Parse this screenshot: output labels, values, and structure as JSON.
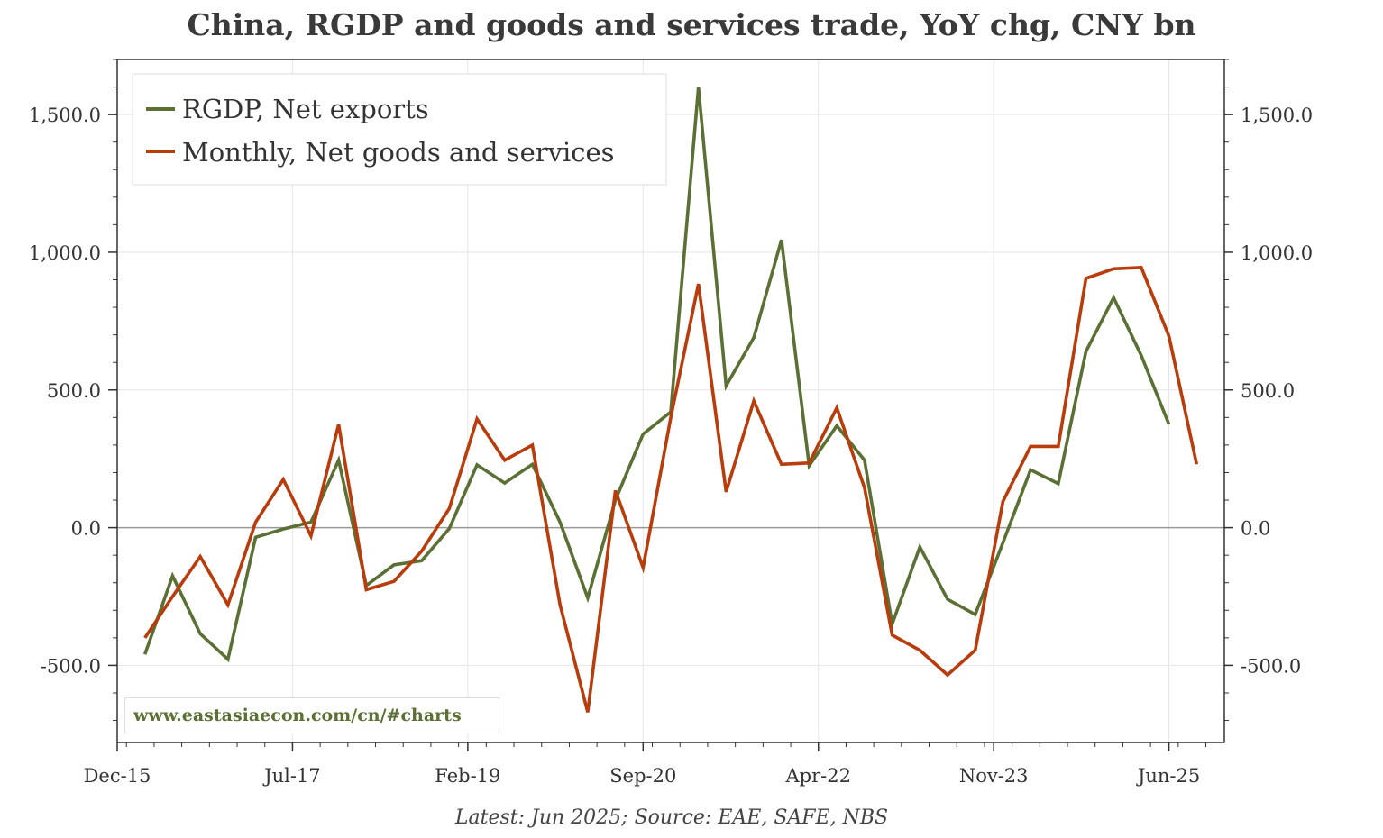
{
  "title": "China, RGDP and goods and services trade, YoY chg, CNY bn",
  "source_note": "Latest: Jun 2025; Source: EAE, SAFE, NBS",
  "watermark": "www.eastasiaecon.com/cn/#charts",
  "colors": {
    "rgdp": "#5b7035",
    "monthly": "#b83c0c",
    "grid": "#e6e6e6",
    "zero": "#999999",
    "axis": "#333333"
  },
  "chart_data": {
    "type": "line",
    "title": "China, RGDP and goods and services trade, YoY chg, CNY bn",
    "xlim": [
      "2015-12",
      "2025-12"
    ],
    "ylim": [
      -780,
      1700
    ],
    "x_ticks": [
      "Dec-15",
      "Jul-17",
      "Feb-19",
      "Sep-20",
      "Apr-22",
      "Nov-23",
      "Jun-25"
    ],
    "y_ticks": [
      "1,500.0",
      "1,000.0",
      "500.0",
      "0.0",
      "-500.0"
    ],
    "y_tick_values": [
      1500,
      1000,
      500,
      0,
      -500
    ],
    "grid": true,
    "legend_position": "top-left",
    "series": [
      {
        "name": "RGDP, Net exports",
        "x": [
          "2016-03",
          "2016-06",
          "2016-09",
          "2016-12",
          "2017-03",
          "2017-06",
          "2017-09",
          "2017-12",
          "2018-03",
          "2018-06",
          "2018-09",
          "2018-12",
          "2019-03",
          "2019-06",
          "2019-09",
          "2019-12",
          "2020-03",
          "2020-06",
          "2020-09",
          "2020-12",
          "2021-03",
          "2021-06",
          "2021-09",
          "2021-12",
          "2022-03",
          "2022-06",
          "2022-09",
          "2022-12",
          "2023-03",
          "2023-06",
          "2023-09",
          "2023-12",
          "2024-03",
          "2024-06",
          "2024-09",
          "2024-12",
          "2025-03",
          "2025-06"
        ],
        "values": [
          -460,
          -175,
          -385,
          -478,
          -35,
          -5,
          20,
          245,
          -210,
          -135,
          -120,
          -3,
          228,
          162,
          230,
          20,
          -255,
          100,
          340,
          420,
          1600,
          515,
          690,
          1045,
          225,
          370,
          245,
          -350,
          -70,
          -260,
          -315,
          -55,
          210,
          160,
          640,
          835,
          625,
          375
        ]
      },
      {
        "name": "Monthly, Net goods and services",
        "x": [
          "2016-03",
          "2016-06",
          "2016-09",
          "2016-12",
          "2017-03",
          "2017-06",
          "2017-09",
          "2017-12",
          "2018-03",
          "2018-06",
          "2018-09",
          "2018-12",
          "2019-03",
          "2019-06",
          "2019-09",
          "2019-12",
          "2020-03",
          "2020-06",
          "2020-09",
          "2020-12",
          "2021-03",
          "2021-06",
          "2021-09",
          "2021-12",
          "2022-03",
          "2022-06",
          "2022-09",
          "2022-12",
          "2023-03",
          "2023-06",
          "2023-09",
          "2023-12",
          "2024-03",
          "2024-06",
          "2024-09",
          "2024-12",
          "2025-03",
          "2025-06",
          "2025-09"
        ],
        "values": [
          -400,
          -250,
          -105,
          -280,
          20,
          175,
          -30,
          375,
          -225,
          -195,
          -85,
          70,
          395,
          245,
          300,
          -280,
          -670,
          135,
          -145,
          400,
          885,
          130,
          460,
          230,
          235,
          435,
          145,
          -390,
          -445,
          -535,
          -445,
          95,
          295,
          295,
          905,
          940,
          945,
          695,
          230
        ]
      }
    ]
  }
}
